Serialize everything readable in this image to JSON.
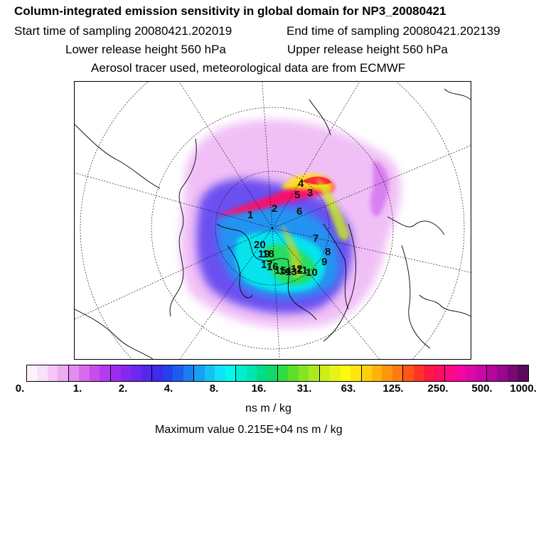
{
  "header": {
    "title": "Column-integrated emission sensitivity in global domain for NP3_20080421",
    "start_time": "Start time of sampling 20080421.202019",
    "end_time": "End time of sampling 20080421.202139",
    "lower_height": "Lower release height  560 hPa",
    "upper_height": "Upper release height  560 hPa",
    "tracer_info": "Aerosol tracer used, meteorological data are from ECMWF"
  },
  "map": {
    "projection": "north polar stereographic",
    "markers": [
      "1",
      "2",
      "3",
      "4",
      "5",
      "6",
      "7",
      "8",
      "9",
      "10",
      "11",
      "12",
      "13",
      "14",
      "15",
      "16",
      "17",
      "18",
      "19",
      "20"
    ]
  },
  "colorbar": {
    "ticks": [
      "0.",
      "1.",
      "2.",
      "4.",
      "8.",
      "16.",
      "31.",
      "63.",
      "125.",
      "250.",
      "500.",
      "1000."
    ],
    "colors": [
      "#fdf3fd",
      "#fae1fb",
      "#f5c6f7",
      "#eeaaf3",
      "#e48cef",
      "#d86aee",
      "#c84cee",
      "#b53af0",
      "#9e2bf0",
      "#8427f0",
      "#6b28f0",
      "#5526ee",
      "#3f2aee",
      "#2640ee",
      "#1e5cf0",
      "#1a7ef0",
      "#18a0f2",
      "#14c2f4",
      "#10e3f6",
      "#06f7ec",
      "#00efd0",
      "#00e6b0",
      "#00dc8c",
      "#10d86a",
      "#30dc40",
      "#5ce02a",
      "#86e424",
      "#acea20",
      "#cdee1c",
      "#e8f218",
      "#fff80f",
      "#ffe60c",
      "#ffcf0a",
      "#ffb30a",
      "#ff960c",
      "#ff7810",
      "#ff5518",
      "#ff3428",
      "#ff1840",
      "#ff0c66",
      "#ff0a86",
      "#f508a0",
      "#e006a8",
      "#cb06a6",
      "#b4069e",
      "#9a068e",
      "#7a0874",
      "#5a0a58"
    ],
    "unit": "ns m / kg"
  },
  "footer": {
    "max_value": "Maximum value  0.215E+04 ns m / kg"
  }
}
